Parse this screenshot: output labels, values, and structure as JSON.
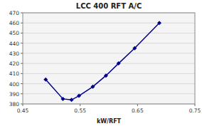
{
  "chart_data": {
    "type": "line",
    "title": "LCC 400 RFT A/C",
    "x_label": "kW/RFT",
    "x": [
      0.49,
      0.52,
      0.535,
      0.548,
      0.572,
      0.595,
      0.617,
      0.645,
      0.688
    ],
    "values": [
      404,
      385,
      384,
      388,
      397,
      408,
      420,
      435,
      460
    ],
    "color": "#00008B",
    "marker": "diamond",
    "xlim": [
      0.45,
      0.75
    ],
    "xticks": [
      0.45,
      0.55,
      0.65,
      0.75
    ],
    "ylim": [
      380,
      470
    ],
    "yticks": [
      380,
      390,
      400,
      410,
      420,
      430,
      440,
      450,
      460,
      470
    ],
    "grid": true
  }
}
